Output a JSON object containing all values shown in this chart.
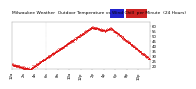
{
  "bg_color": "#ffffff",
  "plot_bg": "#ffffff",
  "temp_color": "#dd0000",
  "title_text": "Milwaukee Weather  Outdoor Temperature vs Wind Chill  per Minute  (24 Hours)",
  "title_fontsize": 3.2,
  "axis_fontsize": 2.8,
  "y_ticks": [
    20,
    25,
    30,
    35,
    40,
    45,
    50,
    55,
    60
  ],
  "ylim": [
    17,
    63
  ],
  "xlim": [
    0,
    1439
  ],
  "dot_size": 0.15,
  "vline_positions": [
    360
  ],
  "legend_blue": "#2222cc",
  "legend_red": "#cc2222",
  "grid_color": "#bbbbbb"
}
